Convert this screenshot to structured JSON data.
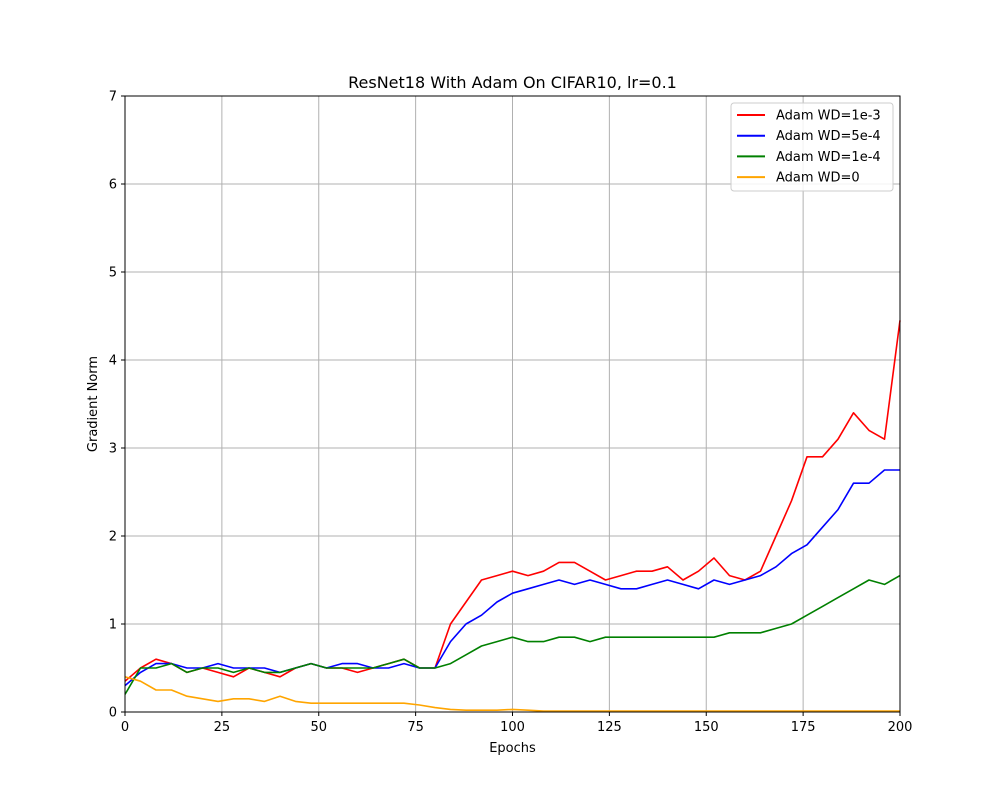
{
  "chart_data": {
    "type": "line",
    "title": "ResNet18 With Adam On CIFAR10, lr=0.1",
    "xlabel": "Epochs",
    "ylabel": "Gradient Norm",
    "xlim": [
      0,
      200
    ],
    "ylim": [
      0,
      7
    ],
    "xticks": [
      0,
      25,
      50,
      75,
      100,
      125,
      150,
      175,
      200
    ],
    "yticks": [
      0,
      1,
      2,
      3,
      4,
      5,
      6,
      7
    ],
    "grid": true,
    "legend_position": "top-right",
    "x": [
      0,
      4,
      8,
      12,
      16,
      20,
      24,
      28,
      32,
      36,
      40,
      44,
      48,
      52,
      56,
      60,
      64,
      68,
      72,
      76,
      80,
      84,
      88,
      92,
      96,
      100,
      104,
      108,
      112,
      116,
      120,
      124,
      128,
      132,
      136,
      140,
      144,
      148,
      152,
      156,
      160,
      164,
      168,
      172,
      176,
      180,
      184,
      188,
      192,
      196,
      200
    ],
    "series": [
      {
        "name": "Adam WD=1e-3",
        "color": "#ff0000",
        "values": [
          0.35,
          0.5,
          0.6,
          0.55,
          0.45,
          0.5,
          0.45,
          0.4,
          0.5,
          0.45,
          0.4,
          0.5,
          0.55,
          0.5,
          0.5,
          0.45,
          0.5,
          0.55,
          0.6,
          0.5,
          0.5,
          1.0,
          1.25,
          1.5,
          1.55,
          1.6,
          1.55,
          1.6,
          1.7,
          1.7,
          1.6,
          1.5,
          1.55,
          1.6,
          1.6,
          1.65,
          1.5,
          1.6,
          1.75,
          1.55,
          1.5,
          1.6,
          2.0,
          2.4,
          2.9,
          2.9,
          3.1,
          3.4,
          3.2,
          3.1,
          4.45
        ]
      },
      {
        "name": "Adam WD=5e-4",
        "color": "#0000ff",
        "values": [
          0.3,
          0.45,
          0.55,
          0.55,
          0.5,
          0.5,
          0.55,
          0.5,
          0.5,
          0.5,
          0.45,
          0.5,
          0.55,
          0.5,
          0.55,
          0.55,
          0.5,
          0.5,
          0.55,
          0.5,
          0.5,
          0.8,
          1.0,
          1.1,
          1.25,
          1.35,
          1.4,
          1.45,
          1.5,
          1.45,
          1.5,
          1.45,
          1.4,
          1.4,
          1.45,
          1.5,
          1.45,
          1.4,
          1.5,
          1.45,
          1.5,
          1.55,
          1.65,
          1.8,
          1.9,
          2.1,
          2.3,
          2.6,
          2.6,
          2.75,
          2.75
        ]
      },
      {
        "name": "Adam WD=1e-4",
        "color": "#008000",
        "values": [
          0.2,
          0.5,
          0.5,
          0.55,
          0.45,
          0.5,
          0.5,
          0.45,
          0.5,
          0.45,
          0.45,
          0.5,
          0.55,
          0.5,
          0.5,
          0.5,
          0.5,
          0.55,
          0.6,
          0.5,
          0.5,
          0.55,
          0.65,
          0.75,
          0.8,
          0.85,
          0.8,
          0.8,
          0.85,
          0.85,
          0.8,
          0.85,
          0.85,
          0.85,
          0.85,
          0.85,
          0.85,
          0.85,
          0.85,
          0.9,
          0.9,
          0.9,
          0.95,
          1.0,
          1.1,
          1.2,
          1.3,
          1.4,
          1.5,
          1.45,
          1.55
        ]
      },
      {
        "name": "Adam WD=0",
        "color": "#ffa500",
        "values": [
          0.4,
          0.35,
          0.25,
          0.25,
          0.18,
          0.15,
          0.12,
          0.15,
          0.15,
          0.12,
          0.18,
          0.12,
          0.1,
          0.1,
          0.1,
          0.1,
          0.1,
          0.1,
          0.1,
          0.08,
          0.05,
          0.03,
          0.02,
          0.02,
          0.02,
          0.03,
          0.02,
          0.01,
          0.01,
          0.01,
          0.01,
          0.01,
          0.01,
          0.01,
          0.01,
          0.01,
          0.01,
          0.01,
          0.01,
          0.01,
          0.01,
          0.01,
          0.01,
          0.01,
          0.01,
          0.01,
          0.01,
          0.01,
          0.01,
          0.01,
          0.01
        ]
      }
    ]
  }
}
